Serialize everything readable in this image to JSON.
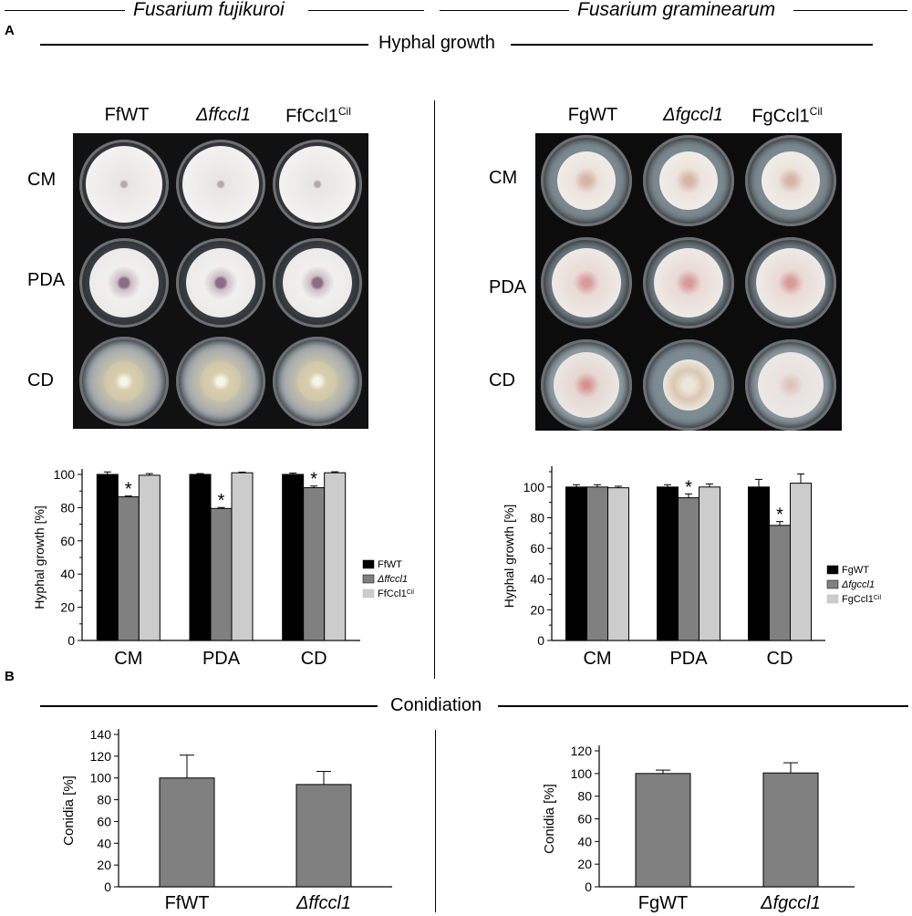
{
  "header": {
    "species_left": "Fusarium fujikuroi",
    "species_right": "Fusarium graminearum"
  },
  "panel_a": {
    "letter": "A",
    "title": "Hyphal growth",
    "left_plates": {
      "columns": [
        {
          "html": "FfWT"
        },
        {
          "html": "<i>Δffccl1</i>"
        },
        {
          "html": "FfCcl1<sup>Cil</sup>"
        }
      ],
      "rows": [
        "CM",
        "PDA",
        "CD"
      ]
    },
    "right_plates": {
      "columns": [
        {
          "html": "FgWT"
        },
        {
          "html": "<i>Δfgccl1</i>"
        },
        {
          "html": "FgCcl1<sup>Cil</sup>"
        }
      ],
      "rows": [
        "CM",
        "PDA",
        "CD"
      ]
    }
  },
  "panel_b": {
    "letter": "B",
    "title": "Conidiation"
  },
  "chart_data": [
    {
      "type": "bar",
      "id": "ff_hyphal",
      "categories": [
        "CM",
        "PDA",
        "CD"
      ],
      "ylabel": "Hyphal growth  [%]",
      "ylim": [
        0,
        100
      ],
      "yticks": [
        0,
        20,
        40,
        60,
        80,
        100
      ],
      "legend_position": "right",
      "series": [
        {
          "name": "FfWT",
          "legend_html": "FfWT",
          "color": "#000000",
          "values": [
            100,
            100,
            100
          ],
          "errors": [
            1.5,
            0.5,
            0.8
          ],
          "significant": [
            false,
            false,
            false
          ]
        },
        {
          "name": "Δffccl1",
          "legend_html": "<tspan font-style='italic'>Δffccl1</tspan>",
          "color": "#808080",
          "values": [
            86.5,
            79.5,
            92
          ],
          "errors": [
            0.5,
            0.6,
            1.0
          ],
          "significant": [
            true,
            true,
            true
          ]
        },
        {
          "name": "FfCcl1Cil",
          "legend_html": "FfCcl1<tspan baseline-shift='super' font-size='7'>Cil</tspan>",
          "color": "#cccccc",
          "values": [
            99.5,
            101,
            101
          ],
          "errors": [
            1.0,
            0.4,
            0.6
          ],
          "significant": [
            false,
            false,
            false
          ]
        }
      ]
    },
    {
      "type": "bar",
      "id": "fg_hyphal",
      "categories": [
        "CM",
        "PDA",
        "CD"
      ],
      "ylabel": "Hyphal growth  [%]",
      "ylim": [
        0,
        110
      ],
      "yticks": [
        0,
        20,
        40,
        60,
        80,
        100
      ],
      "legend_position": "right",
      "series": [
        {
          "name": "FgWT",
          "legend_html": "FgWT",
          "color": "#000000",
          "values": [
            100,
            100,
            100
          ],
          "errors": [
            1.5,
            1.5,
            5
          ],
          "significant": [
            false,
            false,
            false
          ]
        },
        {
          "name": "Δfgccl1",
          "legend_html": "<tspan font-style='italic'>Δfgccl1</tspan>",
          "color": "#808080",
          "values": [
            100,
            93,
            75
          ],
          "errors": [
            1.5,
            2.5,
            2.5
          ],
          "significant": [
            false,
            true,
            true
          ]
        },
        {
          "name": "FgCcl1Cil",
          "legend_html": "FgCcl1<tspan baseline-shift='super' font-size='7'>Cil</tspan>",
          "color": "#cccccc",
          "values": [
            99.5,
            100,
            102.5
          ],
          "errors": [
            1.0,
            2.0,
            6
          ],
          "significant": [
            false,
            false,
            false
          ]
        }
      ]
    },
    {
      "type": "bar",
      "id": "ff_conidia",
      "categories": [
        "FfWT",
        "Δffccl1"
      ],
      "categories_html": [
        "FfWT",
        "<tspan font-style='italic'>Δffccl1</tspan>"
      ],
      "ylabel": "Conidia [%]",
      "ylim": [
        0,
        140
      ],
      "yticks": [
        0,
        20,
        40,
        60,
        80,
        100,
        120,
        140
      ],
      "series": [
        {
          "color": "#808080",
          "values": [
            100,
            94
          ],
          "errors": [
            21,
            12
          ]
        }
      ]
    },
    {
      "type": "bar",
      "id": "fg_conidia",
      "categories": [
        "FgWT",
        "Δfgccl1"
      ],
      "categories_html": [
        "FgWT",
        "<tspan font-style='italic'>Δfgccl1</tspan>"
      ],
      "ylabel": "Conidia [%]",
      "ylim": [
        0,
        120
      ],
      "yticks": [
        0,
        20,
        40,
        60,
        80,
        100,
        120
      ],
      "series": [
        {
          "color": "#808080",
          "values": [
            100,
            100.5
          ],
          "errors": [
            3,
            9
          ]
        }
      ]
    }
  ]
}
